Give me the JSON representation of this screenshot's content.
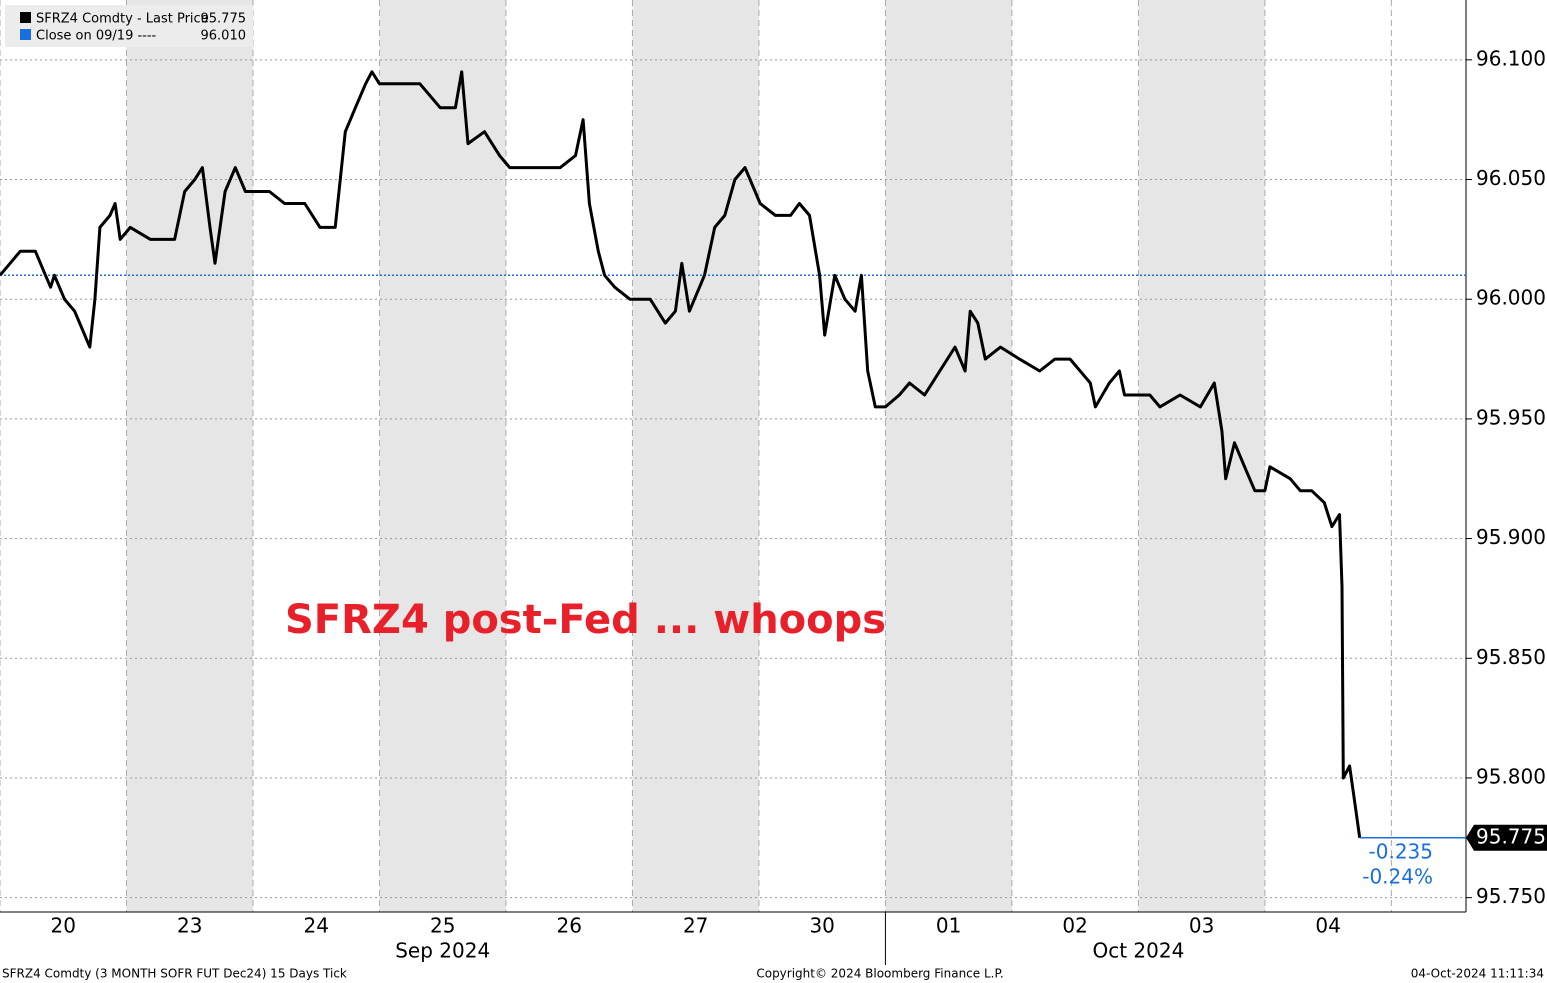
{
  "chart_data": {
    "type": "line",
    "annotation": "SFRZ4 post-Fed ... whoops",
    "series": [
      {
        "name": "SFRZ4 Comdty - Last Price",
        "legend_value": "95.775",
        "last_price_label": "95.775",
        "color": "#000000",
        "x": [
          0,
          0.08,
          0.16,
          0.28,
          0.36,
          0.4,
          0.43,
          0.51,
          0.59,
          0.63,
          0.71,
          0.75,
          0.79,
          0.87,
          0.91,
          0.95,
          1.03,
          1.19,
          1.38,
          1.46,
          1.54,
          1.6,
          1.66,
          1.7,
          1.78,
          1.86,
          1.94,
          2.13,
          2.25,
          2.41,
          2.53,
          2.65,
          2.73,
          2.81,
          2.89,
          2.94,
          3.0,
          3.16,
          3.32,
          3.48,
          3.6,
          3.65,
          3.7,
          3.83,
          3.95,
          4.03,
          4.15,
          4.27,
          4.43,
          4.55,
          4.61,
          4.66,
          4.73,
          4.78,
          4.86,
          4.98,
          5.14,
          5.26,
          5.34,
          5.39,
          5.45,
          5.57,
          5.65,
          5.73,
          5.81,
          5.89,
          5.97,
          6.01,
          6.13,
          6.25,
          6.32,
          6.4,
          6.48,
          6.52,
          6.6,
          6.68,
          6.76,
          6.81,
          6.86,
          6.92,
          7.0,
          7.11,
          7.19,
          7.31,
          7.43,
          7.55,
          7.63,
          7.67,
          7.73,
          7.79,
          7.91,
          8.06,
          8.22,
          8.34,
          8.46,
          8.62,
          8.66,
          8.77,
          8.85,
          8.89,
          9.09,
          9.17,
          9.33,
          9.49,
          9.6,
          9.66,
          9.69,
          9.76,
          9.84,
          9.92,
          10.0,
          10.04,
          10.2,
          10.28,
          10.37,
          10.47,
          10.53,
          10.59,
          10.61,
          10.62,
          10.67,
          10.71,
          10.75
        ],
        "values": [
          96.01,
          96.015,
          96.02,
          96.02,
          96.01,
          96.005,
          96.01,
          96.0,
          95.995,
          95.99,
          95.98,
          96.0,
          96.03,
          96.035,
          96.04,
          96.025,
          96.03,
          96.025,
          96.025,
          96.045,
          96.05,
          96.055,
          96.03,
          96.015,
          96.045,
          96.055,
          96.045,
          96.045,
          96.04,
          96.04,
          96.03,
          96.03,
          96.07,
          96.08,
          96.09,
          96.095,
          96.09,
          96.09,
          96.09,
          96.08,
          96.08,
          96.095,
          96.065,
          96.07,
          96.06,
          96.055,
          96.055,
          96.055,
          96.055,
          96.06,
          96.075,
          96.04,
          96.02,
          96.01,
          96.005,
          96.0,
          96.0,
          95.99,
          95.995,
          96.015,
          95.995,
          96.01,
          96.03,
          96.035,
          96.05,
          96.055,
          96.045,
          96.04,
          96.035,
          96.035,
          96.04,
          96.035,
          96.01,
          95.985,
          96.01,
          96.0,
          95.995,
          96.01,
          95.97,
          95.955,
          95.955,
          95.96,
          95.965,
          95.96,
          95.97,
          95.98,
          95.97,
          95.995,
          95.99,
          95.975,
          95.98,
          95.975,
          95.97,
          95.975,
          95.975,
          95.965,
          95.955,
          95.965,
          95.97,
          95.96,
          95.96,
          95.955,
          95.96,
          95.955,
          95.965,
          95.945,
          95.925,
          95.94,
          95.93,
          95.92,
          95.92,
          95.93,
          95.925,
          95.92,
          95.92,
          95.915,
          95.905,
          95.91,
          95.88,
          95.8,
          95.805,
          95.79,
          95.775
        ]
      }
    ],
    "reference_line": {
      "name": "Close on 09/19 ----",
      "value": 96.01,
      "value_label": "96.010",
      "color": "#1a6fe0"
    },
    "change_labels": [
      "-0.235",
      "-0.24%"
    ],
    "xlim": [
      0,
      11.59
    ],
    "xticks": [
      {
        "value": 0.5,
        "label": "20"
      },
      {
        "value": 1.5,
        "label": "23"
      },
      {
        "value": 2.5,
        "label": "24"
      },
      {
        "value": 3.5,
        "label": "25"
      },
      {
        "value": 4.5,
        "label": "26"
      },
      {
        "value": 5.5,
        "label": "27"
      },
      {
        "value": 6.5,
        "label": "30"
      },
      {
        "value": 7.5,
        "label": "01"
      },
      {
        "value": 8.5,
        "label": "02"
      },
      {
        "value": 9.5,
        "label": "03"
      },
      {
        "value": 10.5,
        "label": "04"
      }
    ],
    "month_labels": [
      {
        "value": 3.5,
        "label": "Sep 2024"
      },
      {
        "value": 9.0,
        "label": "Oct 2024"
      }
    ],
    "month_divider": 7,
    "ylim": [
      95.744,
      96.125
    ],
    "yticks": [
      {
        "value": 95.75,
        "label": "95.750"
      },
      {
        "value": 95.8,
        "label": "95.800"
      },
      {
        "value": 95.85,
        "label": "95.850"
      },
      {
        "value": 95.9,
        "label": "95.900"
      },
      {
        "value": 95.95,
        "label": "95.950"
      },
      {
        "value": 96.0,
        "label": "96.000"
      },
      {
        "value": 96.05,
        "label": "96.050"
      },
      {
        "value": 96.1,
        "label": "96.100"
      }
    ],
    "grid": true,
    "footer": {
      "left": "SFRZ4 Comdty (3 MONTH SOFR FUT  Dec24) 15 Days  Tick",
      "center": "Copyright© 2024 Bloomberg Finance L.P.",
      "right": "04-Oct-2024 11:11:34"
    }
  }
}
